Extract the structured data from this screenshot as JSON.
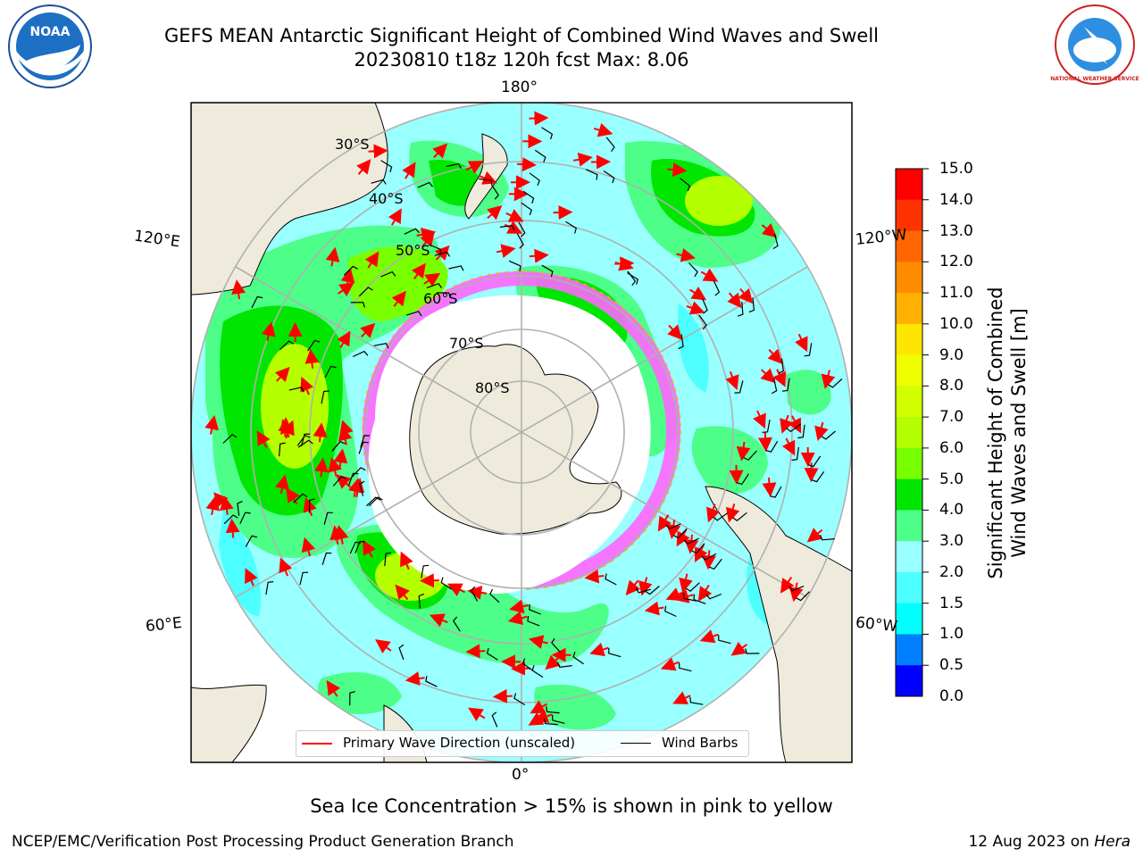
{
  "title": {
    "line1": "GEFS MEAN Antarctic Significant Height of Combined Wind Waves and Swell",
    "line2": "20230810 t18z 120h fcst   Max: 8.06"
  },
  "map": {
    "longitude_labels": {
      "top": "180°",
      "bottom": "0°",
      "left_upper": "120°E",
      "right_upper": "120°W",
      "left_lower": "60°E",
      "right_lower": "60°W"
    },
    "latitude_labels": [
      "30°S",
      "40°S",
      "50°S",
      "60°S",
      "70°S",
      "80°S"
    ],
    "colors": {
      "land": "#efebdc",
      "ocean_low": "#99ffff",
      "ocean_mid": "#4dff88",
      "ocean_high": "#00e600",
      "ice": "#ff66ff",
      "wave_arrow": "#ff0000"
    }
  },
  "legend": {
    "primary_wave": "Primary Wave Direction (unscaled)",
    "wind_barbs": "Wind Barbs"
  },
  "colorbar": {
    "label_line1": "Significant Height of Combined",
    "label_line2": "Wind Waves and Swell [m]",
    "ticks": [
      "15.0",
      "14.0",
      "13.0",
      "12.0",
      "11.0",
      "10.0",
      "9.0",
      "8.0",
      "7.0",
      "6.0",
      "5.0",
      "4.0",
      "3.0",
      "2.0",
      "1.5",
      "1.0",
      "0.5",
      "0.0"
    ],
    "colors": [
      "#ff0000",
      "#ff3300",
      "#ff6600",
      "#ff8c00",
      "#ffb000",
      "#ffe600",
      "#f0ff00",
      "#d2ff00",
      "#b4ff00",
      "#78ff00",
      "#00e600",
      "#4dff88",
      "#99ffff",
      "#4dffff",
      "#00ffff",
      "#0080ff",
      "#0000ff"
    ]
  },
  "logos": {
    "noaa": "NOAA",
    "nws": "NATIONAL WEATHER SERVICE"
  },
  "footer": {
    "sea_ice_note": "Sea Ice Concentration > 15% is shown in pink to yellow",
    "credit": "NCEP/EMC/Verification Post Processing Product Generation Branch",
    "date": "12 Aug 2023 on ",
    "machine": "Hera"
  }
}
